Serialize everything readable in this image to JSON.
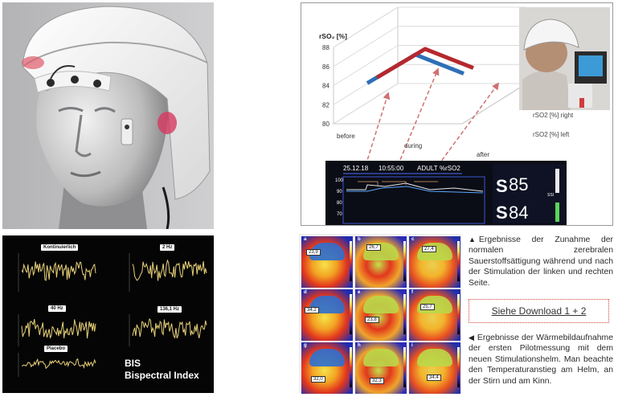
{
  "bis_panel": {
    "labels": {
      "kontinuierlich": "Kontinuierlich",
      "hz2": "2 Hz",
      "hz40": "40 Hz",
      "hz136": "136,1 Hz",
      "placebo": "Placebo"
    },
    "title_line1": "BIS",
    "title_line2": "Bispectral Index"
  },
  "chart": {
    "colors": {
      "left": "#2e6fb7",
      "right": "#b5282e",
      "arrow": "#d07070"
    },
    "monitor": {
      "date": "25.12.18",
      "time": "10:55:00",
      "mode": "ADULT",
      "channel": "%rSO2",
      "readout_top": "85",
      "readout_bottom": "84",
      "s_label": "S",
      "ssi_label": "SSI"
    }
  },
  "chart_data": {
    "type": "line",
    "title": "",
    "ylabel": "rSO₂ [%]",
    "ylim": [
      80,
      88
    ],
    "yticks": [
      "88",
      "86",
      "84",
      "82",
      "80"
    ],
    "categories": [
      "before",
      "during",
      "after"
    ],
    "series": [
      {
        "name": "rSO2 [%] left",
        "values": [
          84.0,
          87.0,
          85.0
        ]
      },
      {
        "name": "rSO2 [%] right",
        "values": [
          84.0,
          87.0,
          85.0
        ]
      }
    ],
    "grid": true,
    "legend_position": "bottom-right"
  },
  "thermal": {
    "cells": [
      {
        "label": "a",
        "value": "23,9"
      },
      {
        "label": "b",
        "value": "26,7"
      },
      {
        "label": "c",
        "value": "27,4"
      },
      {
        "label": "d",
        "value": "34,2"
      },
      {
        "label": "e",
        "value": "23,8"
      },
      {
        "label": "f",
        "value": "25,7"
      },
      {
        "label": "g",
        "value": "32,0"
      },
      {
        "label": "h",
        "value": "32,3"
      },
      {
        "label": "i",
        "value": "34,4"
      }
    ]
  },
  "captions": {
    "caption1": "Ergebnisse der Zunahme der normalen zerebralen Sauerstoffsättigung während und nach der Stimulation der linken und rechten Seite.",
    "download": "Siehe Download 1 + 2",
    "caption2": "Ergebnisse der Wärmebildaufnahme der ersten Pilotmessung mit dem neuen Stimulationshelm. Man beachte den Temperaturanstieg am Helm, an der Stirn und am Kinn."
  }
}
